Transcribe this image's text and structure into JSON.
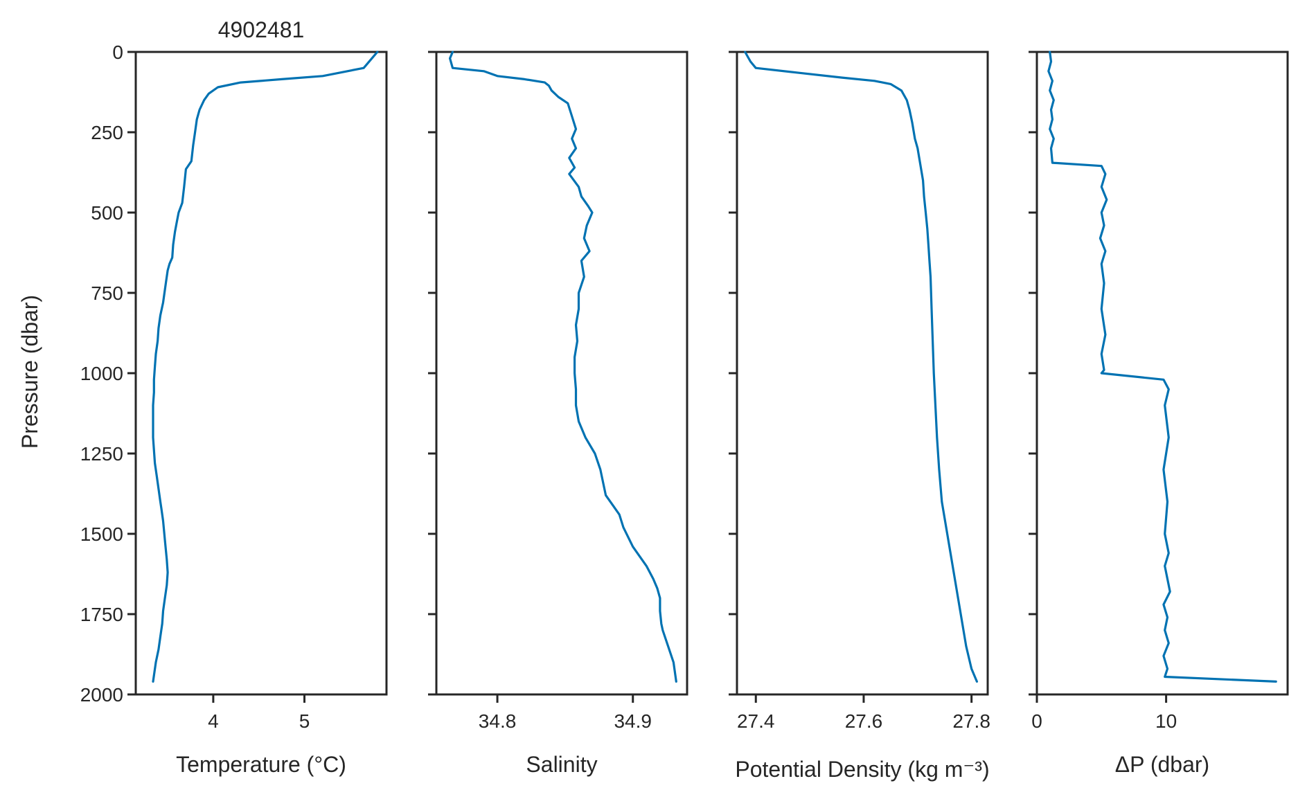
{
  "colors": {
    "line": "#0072B2",
    "axes": "#262626",
    "background": "#ffffff"
  },
  "chart_data": {
    "type": "line",
    "title": "4902481",
    "shared_y": {
      "label": "Pressure (dbar)",
      "range": [
        2000,
        0
      ],
      "inverted": true,
      "ticks": [
        0,
        250,
        500,
        750,
        1000,
        1250,
        1500,
        1750,
        2000
      ]
    },
    "grid": false,
    "panels": [
      {
        "xlabel": "Temperature (°C)",
        "xlim": [
          3.15,
          5.9
        ],
        "xticks": [
          4,
          5
        ],
        "series": [
          {
            "x": [
              5.8,
              5.74,
              5.65,
              5.2,
              4.75,
              4.3,
              4.05,
              3.95,
              3.9,
              3.85,
              3.82,
              3.8,
              3.78,
              3.76,
              3.7,
              3.68,
              3.66,
              3.62,
              3.6,
              3.58,
              3.56,
              3.55,
              3.52,
              3.5,
              3.48,
              3.45,
              3.42,
              3.4,
              3.39,
              3.37,
              3.36,
              3.35,
              3.35,
              3.34,
              3.34,
              3.34,
              3.35,
              3.36,
              3.38,
              3.4,
              3.42,
              3.43,
              3.45,
              3.47,
              3.49,
              3.5,
              3.49,
              3.47,
              3.45,
              3.44,
              3.42,
              3.4,
              3.37,
              3.34
            ],
            "y": [
              0,
              20,
              50,
              75,
              85,
              95,
              110,
              130,
              150,
              180,
              210,
              250,
              290,
              340,
              365,
              420,
              470,
              500,
              530,
              560,
              600,
              640,
              660,
              680,
              720,
              780,
              820,
              860,
              900,
              940,
              980,
              1020,
              1060,
              1100,
              1150,
              1200,
              1240,
              1280,
              1320,
              1360,
              1400,
              1420,
              1460,
              1520,
              1580,
              1620,
              1660,
              1700,
              1740,
              1780,
              1820,
              1860,
              1900,
              1960
            ]
          }
        ]
      },
      {
        "xlabel": "Salinity",
        "xlim": [
          34.755,
          34.94
        ],
        "xticks": [
          34.8,
          34.9
        ],
        "tick_labels": [
          "34.8",
          "34.9"
        ],
        "series": [
          {
            "x": [
              34.767,
              34.765,
              34.767,
              34.79,
              34.8,
              34.82,
              34.835,
              34.838,
              34.84,
              34.845,
              34.852,
              34.855,
              34.858,
              34.855,
              34.858,
              34.853,
              34.857,
              34.853,
              34.86,
              34.862,
              34.867,
              34.87,
              34.866,
              34.864,
              34.868,
              34.862,
              34.864,
              34.86,
              34.86,
              34.858,
              34.859,
              34.857,
              34.857,
              34.858,
              34.858,
              34.86,
              34.865,
              34.872,
              34.876,
              34.878,
              34.88,
              34.885,
              34.89,
              34.893,
              34.9,
              34.91,
              34.915,
              34.918,
              34.92,
              34.92,
              34.921,
              34.922,
              34.926,
              34.93,
              34.932
            ],
            "y": [
              0,
              20,
              50,
              60,
              75,
              85,
              95,
              105,
              120,
              140,
              160,
              200,
              240,
              270,
              300,
              330,
              360,
              380,
              420,
              450,
              480,
              500,
              540,
              580,
              620,
              650,
              700,
              750,
              800,
              850,
              900,
              950,
              1000,
              1050,
              1100,
              1150,
              1200,
              1250,
              1300,
              1340,
              1380,
              1410,
              1440,
              1480,
              1540,
              1600,
              1640,
              1670,
              1700,
              1740,
              1780,
              1800,
              1850,
              1900,
              1960
            ]
          }
        ]
      },
      {
        "xlabel": "Potential Density (kg m⁻³)",
        "xlim": [
          27.365,
          27.83
        ],
        "xticks": [
          27.4,
          27.6,
          27.8
        ],
        "tick_labels": [
          "27.4",
          "27.6",
          "27.8"
        ],
        "series": [
          {
            "x": [
              27.38,
              27.39,
              27.4,
              27.48,
              27.56,
              27.62,
              27.65,
              27.67,
              27.68,
              27.685,
              27.69,
              27.695,
              27.7,
              27.705,
              27.71,
              27.712,
              27.715,
              27.718,
              27.72,
              27.722,
              27.724,
              27.726,
              27.728,
              27.73,
              27.733,
              27.736,
              27.74,
              27.745,
              27.75,
              27.755,
              27.76,
              27.77,
              27.78,
              27.79,
              27.8,
              27.81
            ],
            "y": [
              0,
              30,
              50,
              65,
              80,
              90,
              100,
              120,
              150,
              180,
              220,
              270,
              300,
              350,
              400,
              450,
              500,
              550,
              600,
              650,
              700,
              800,
              900,
              1000,
              1100,
              1200,
              1300,
              1400,
              1450,
              1500,
              1550,
              1650,
              1750,
              1850,
              1920,
              1960
            ]
          }
        ]
      },
      {
        "xlabel": "ΔP (dbar)",
        "xlim": [
          0,
          19.4
        ],
        "xticks": [
          0,
          10
        ],
        "series": [
          {
            "x": [
              1.0,
              1.1,
              0.9,
              1.2,
              1.0,
              1.3,
              1.1,
              1.2,
              1.0,
              1.3,
              1.1,
              1.2,
              5.0,
              5.3,
              5.0,
              5.4,
              5.0,
              5.2,
              4.9,
              5.3,
              5.0,
              5.2,
              5.0,
              5.3,
              5.0,
              5.2,
              5.0,
              9.8,
              10.2,
              9.9,
              10.2,
              9.8,
              10.1,
              9.9,
              10.2,
              9.9,
              10.3,
              9.8,
              10.1,
              9.9,
              10.2,
              9.8,
              10.1,
              9.9,
              18.5
            ],
            "y": [
              0,
              30,
              60,
              90,
              120,
              150,
              180,
              210,
              240,
              270,
              300,
              345,
              355,
              380,
              420,
              460,
              500,
              540,
              580,
              620,
              660,
              720,
              800,
              880,
              940,
              990,
              1000,
              1020,
              1050,
              1100,
              1200,
              1300,
              1400,
              1500,
              1560,
              1600,
              1680,
              1720,
              1760,
              1800,
              1840,
              1880,
              1920,
              1945,
              1960
            ]
          }
        ]
      }
    ]
  }
}
